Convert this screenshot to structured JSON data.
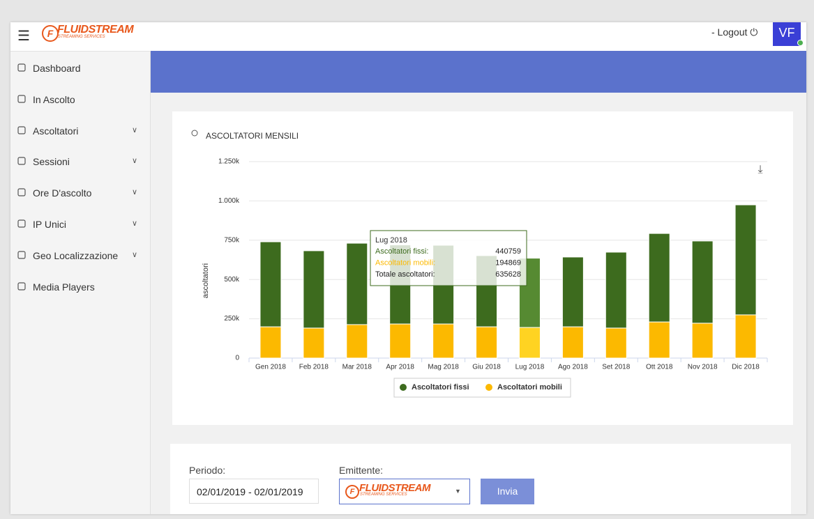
{
  "header": {
    "logo_name": "FLUIDSTREAM",
    "logo_sub": "STREAMING SERVICES",
    "logout": "- Logout",
    "avatar": "VF"
  },
  "sidebar": {
    "items": [
      {
        "label": "Dashboard",
        "expandable": false
      },
      {
        "label": "In Ascolto",
        "expandable": false
      },
      {
        "label": "Ascoltatori",
        "expandable": true
      },
      {
        "label": "Sessioni",
        "expandable": true
      },
      {
        "label": "Ore D'ascolto",
        "expandable": true
      },
      {
        "label": "IP Unici",
        "expandable": true
      },
      {
        "label": "Geo Localizzazione",
        "expandable": true
      },
      {
        "label": "Media Players",
        "expandable": false
      }
    ]
  },
  "chart_data": {
    "type": "stacked_bar",
    "title": "ASCOLTATORI MENSILI",
    "y_label": "ascoltatori",
    "categories": [
      "Gen 2018",
      "Feb 2018",
      "Mar 2018",
      "Apr 2018",
      "Mag 2018",
      "Giu 2018",
      "Lug 2018",
      "Ago 2018",
      "Set 2018",
      "Ott 2018",
      "Nov 2018",
      "Dic 2018"
    ],
    "series": [
      {
        "name": "Ascoltatori fissi",
        "color": "#3d6b1e",
        "highlight_color": "#568a32",
        "values": [
          541000,
          492000,
          518000,
          503000,
          501000,
          453000,
          440759,
          444000,
          483000,
          563000,
          523000,
          700000
        ]
      },
      {
        "name": "Ascoltatori mobili",
        "color": "#fcb900",
        "highlight_color": "#ffd322",
        "values": [
          199000,
          191000,
          213000,
          217000,
          217000,
          199000,
          194869,
          199000,
          191000,
          230000,
          222000,
          275000
        ]
      }
    ],
    "ylim": [
      0,
      1250000
    ],
    "yticks": [
      0,
      {
        "value": 250000,
        "label": "250k"
      },
      {
        "value": 500000,
        "label": "500k"
      },
      {
        "value": 750000,
        "label": "750k"
      },
      {
        "value": 1000000,
        "label": "1.000k"
      },
      {
        "value": 1250000,
        "label": "1.250k"
      }
    ],
    "grid": true,
    "legend": "bottom",
    "tooltip": {
      "index": 6,
      "fissi_label": "Ascoltatori fissi:",
      "mobili_label": "Ascoltatori mobili:",
      "total_label": "Totale ascoltatori:",
      "total": 635628
    }
  },
  "form": {
    "period_label": "Periodo:",
    "period_value": "02/01/2019 - 02/01/2019",
    "emitter_label": "Emittente:",
    "button": "Invia"
  }
}
